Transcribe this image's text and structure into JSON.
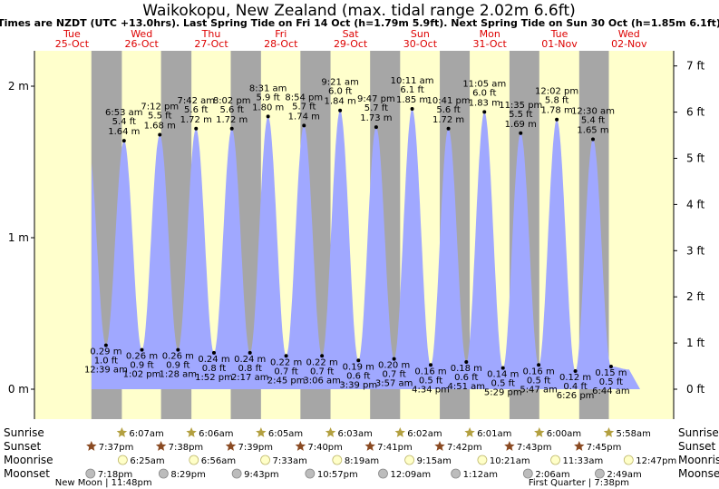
{
  "title": "Waikokopu, New Zealand (max. tidal range 2.02m 6.6ft)",
  "subtitle": "Times are NZDT (UTC +13.0hrs). Last Spring Tide on Fri 14 Oct (h=1.79m 5.9ft). Next Spring Tide on Sun 30 Oct (h=1.85m 6.1ft)",
  "days": [
    {
      "name": "Tue",
      "date": "25-Oct"
    },
    {
      "name": "Wed",
      "date": "26-Oct"
    },
    {
      "name": "Thu",
      "date": "27-Oct"
    },
    {
      "name": "Fri",
      "date": "28-Oct"
    },
    {
      "name": "Sat",
      "date": "29-Oct"
    },
    {
      "name": "Sun",
      "date": "30-Oct"
    },
    {
      "name": "Mon",
      "date": "31-Oct"
    },
    {
      "name": "Tue",
      "date": "01-Nov"
    },
    {
      "name": "Wed",
      "date": "02-Nov"
    }
  ],
  "left_axis": {
    "ticks": [
      "0 m",
      "1 m",
      "2 m"
    ]
  },
  "right_axis": {
    "ticks": [
      "0 ft",
      "1 ft",
      "2 ft",
      "3 ft",
      "4 ft",
      "5 ft",
      "6 ft",
      "7 ft"
    ]
  },
  "chart_data": {
    "type": "area",
    "ylabel": "",
    "ylim_m": [
      0,
      2
    ],
    "ylim_ft": [
      0,
      7
    ],
    "extremes": [
      {
        "type": "high",
        "time": "6:53 am",
        "m": "1.64 m",
        "ft": "5.4 ft",
        "h": 1.64,
        "day": 1,
        "hr": 6.88
      },
      {
        "type": "high",
        "time": "7:12 pm",
        "m": "1.68 m",
        "ft": "5.5 ft",
        "h": 1.68,
        "day": 1,
        "hr": 19.2
      },
      {
        "type": "high",
        "time": "7:42 am",
        "m": "1.72 m",
        "ft": "5.6 ft",
        "h": 1.72,
        "day": 2,
        "hr": 7.7
      },
      {
        "type": "high",
        "time": "8:02 pm",
        "m": "1.72 m",
        "ft": "5.6 ft",
        "h": 1.72,
        "day": 2,
        "hr": 20.03
      },
      {
        "type": "high",
        "time": "8:31 am",
        "m": "1.80 m",
        "ft": "5.9 ft",
        "h": 1.8,
        "day": 3,
        "hr": 8.52
      },
      {
        "type": "high",
        "time": "8:54 pm",
        "m": "1.74 m",
        "ft": "5.7 ft",
        "h": 1.74,
        "day": 3,
        "hr": 20.9
      },
      {
        "type": "high",
        "time": "9:21 am",
        "m": "1.84 m",
        "ft": "6.0 ft",
        "h": 1.84,
        "day": 4,
        "hr": 9.35
      },
      {
        "type": "high",
        "time": "9:47 pm",
        "m": "1.73 m",
        "ft": "5.7 ft",
        "h": 1.73,
        "day": 4,
        "hr": 21.78
      },
      {
        "type": "high",
        "time": "10:11 am",
        "m": "1.85 m",
        "ft": "6.1 ft",
        "h": 1.85,
        "day": 5,
        "hr": 10.18
      },
      {
        "type": "high",
        "time": "10:41 pm",
        "m": "1.72 m",
        "ft": "5.6 ft",
        "h": 1.72,
        "day": 5,
        "hr": 22.68
      },
      {
        "type": "high",
        "time": "11:05 am",
        "m": "1.83 m",
        "ft": "6.0 ft",
        "h": 1.83,
        "day": 6,
        "hr": 11.08
      },
      {
        "type": "high",
        "time": "11:35 pm",
        "m": "1.69 m",
        "ft": "5.5 ft",
        "h": 1.69,
        "day": 6,
        "hr": 23.58
      },
      {
        "type": "high",
        "time": "12:02 pm",
        "m": "1.78 m",
        "ft": "5.8 ft",
        "h": 1.78,
        "day": 7,
        "hr": 12.03
      },
      {
        "type": "high",
        "time": "12:30 am",
        "m": "1.65 m",
        "ft": "5.4 ft",
        "h": 1.65,
        "day": 8,
        "hr": 0.5
      },
      {
        "type": "low",
        "time": "12:39 am",
        "m": "0.29 m",
        "ft": "1.0 ft",
        "h": 0.29,
        "day": 1,
        "hr": 0.65
      },
      {
        "type": "low",
        "time": "1:02 pm",
        "m": "0.26 m",
        "ft": "0.9 ft",
        "h": 0.26,
        "day": 1,
        "hr": 13.03
      },
      {
        "type": "low",
        "time": "1:28 am",
        "m": "0.26 m",
        "ft": "0.9 ft",
        "h": 0.26,
        "day": 2,
        "hr": 1.47
      },
      {
        "type": "low",
        "time": "1:52 pm",
        "m": "0.24 m",
        "ft": "0.8 ft",
        "h": 0.24,
        "day": 2,
        "hr": 13.87
      },
      {
        "type": "low",
        "time": "2:17 am",
        "m": "0.24 m",
        "ft": "0.8 ft",
        "h": 0.24,
        "day": 3,
        "hr": 2.28
      },
      {
        "type": "low",
        "time": "2:45 pm",
        "m": "0.22 m",
        "ft": "0.7 ft",
        "h": 0.22,
        "day": 3,
        "hr": 14.75
      },
      {
        "type": "low",
        "time": "3:06 am",
        "m": "0.22 m",
        "ft": "0.7 ft",
        "h": 0.22,
        "day": 4,
        "hr": 3.1
      },
      {
        "type": "low",
        "time": "3:39 pm",
        "m": "0.19 m",
        "ft": "0.6 ft",
        "h": 0.19,
        "day": 4,
        "hr": 15.65
      },
      {
        "type": "low",
        "time": "3:57 am",
        "m": "0.20 m",
        "ft": "0.7 ft",
        "h": 0.2,
        "day": 5,
        "hr": 3.95
      },
      {
        "type": "low",
        "time": "4:34 pm",
        "m": "0.16 m",
        "ft": "0.5 ft",
        "h": 0.16,
        "day": 5,
        "hr": 16.57
      },
      {
        "type": "low",
        "time": "4:51 am",
        "m": "0.18 m",
        "ft": "0.6 ft",
        "h": 0.18,
        "day": 6,
        "hr": 4.85
      },
      {
        "type": "low",
        "time": "5:29 pm",
        "m": "0.14 m",
        "ft": "0.5 ft",
        "h": 0.14,
        "day": 6,
        "hr": 17.48
      },
      {
        "type": "low",
        "time": "5:47 am",
        "m": "0.16 m",
        "ft": "0.5 ft",
        "h": 0.16,
        "day": 7,
        "hr": 5.78
      },
      {
        "type": "low",
        "time": "6:26 pm",
        "m": "0.12 m",
        "ft": "0.4 ft",
        "h": 0.12,
        "day": 7,
        "hr": 18.43
      },
      {
        "type": "low",
        "time": "6:44 am",
        "m": "0.15 m",
        "ft": "0.5 ft",
        "h": 0.15,
        "day": 8,
        "hr": 6.73
      }
    ]
  },
  "rows": {
    "sunrise": "Sunrise",
    "sunset": "Sunset",
    "moonrise": "Moonrise",
    "moonset": "Moonset"
  },
  "sunrise": [
    {
      "time": "6:07am",
      "day": 1,
      "hr": 6.12
    },
    {
      "time": "6:06am",
      "day": 2,
      "hr": 6.1
    },
    {
      "time": "6:05am",
      "day": 3,
      "hr": 6.08
    },
    {
      "time": "6:03am",
      "day": 4,
      "hr": 6.05
    },
    {
      "time": "6:02am",
      "day": 5,
      "hr": 6.03
    },
    {
      "time": "6:01am",
      "day": 6,
      "hr": 6.02
    },
    {
      "time": "6:00am",
      "day": 7,
      "hr": 6.0
    },
    {
      "time": "5:58am",
      "day": 8,
      "hr": 5.97
    }
  ],
  "sunset": [
    {
      "time": "7:37pm",
      "day": 0,
      "hr": 19.62
    },
    {
      "time": "7:38pm",
      "day": 1,
      "hr": 19.63
    },
    {
      "time": "7:39pm",
      "day": 2,
      "hr": 19.65
    },
    {
      "time": "7:40pm",
      "day": 3,
      "hr": 19.67
    },
    {
      "time": "7:41pm",
      "day": 4,
      "hr": 19.68
    },
    {
      "time": "7:42pm",
      "day": 5,
      "hr": 19.7
    },
    {
      "time": "7:43pm",
      "day": 6,
      "hr": 19.72
    },
    {
      "time": "7:45pm",
      "day": 7,
      "hr": 19.75
    }
  ],
  "moonrise": [
    {
      "time": "6:25am",
      "day": 1,
      "hr": 6.42
    },
    {
      "time": "6:56am",
      "day": 2,
      "hr": 6.93
    },
    {
      "time": "7:33am",
      "day": 3,
      "hr": 7.55
    },
    {
      "time": "8:19am",
      "day": 4,
      "hr": 8.32
    },
    {
      "time": "9:15am",
      "day": 5,
      "hr": 9.25
    },
    {
      "time": "10:21am",
      "day": 6,
      "hr": 10.35
    },
    {
      "time": "11:33am",
      "day": 7,
      "hr": 11.55
    },
    {
      "time": "12:47pm",
      "day": 8,
      "hr": 12.78
    }
  ],
  "moonset": [
    {
      "time": "7:18pm",
      "day": 0,
      "hr": 19.3
    },
    {
      "time": "8:29pm",
      "day": 1,
      "hr": 20.48
    },
    {
      "time": "9:43pm",
      "day": 2,
      "hr": 21.72
    },
    {
      "time": "10:57pm",
      "day": 3,
      "hr": 22.95
    },
    {
      "time": "12:09am",
      "day": 5,
      "hr": 0.15
    },
    {
      "time": "1:12am",
      "day": 6,
      "hr": 1.2
    },
    {
      "time": "2:06am",
      "day": 7,
      "hr": 2.1
    },
    {
      "time": "2:49am",
      "day": 8,
      "hr": 2.82
    }
  ],
  "moon_phases": [
    {
      "label": "New Moon | 11:48pm",
      "day": 0,
      "hr": 23.8
    },
    {
      "label": "First Quarter | 7:38pm",
      "day": 7,
      "hr": 19.63
    }
  ],
  "colors": {
    "day": "#ffffcc",
    "night": "#a6a6a6",
    "water": "#a0a8ff",
    "day_label": "#dd0000",
    "sun_icon": "#b3a040",
    "sunset_icon": "#8a4a22",
    "moonrise_icon": "#ffffc8",
    "moonset_icon": "#bcbcbc"
  }
}
